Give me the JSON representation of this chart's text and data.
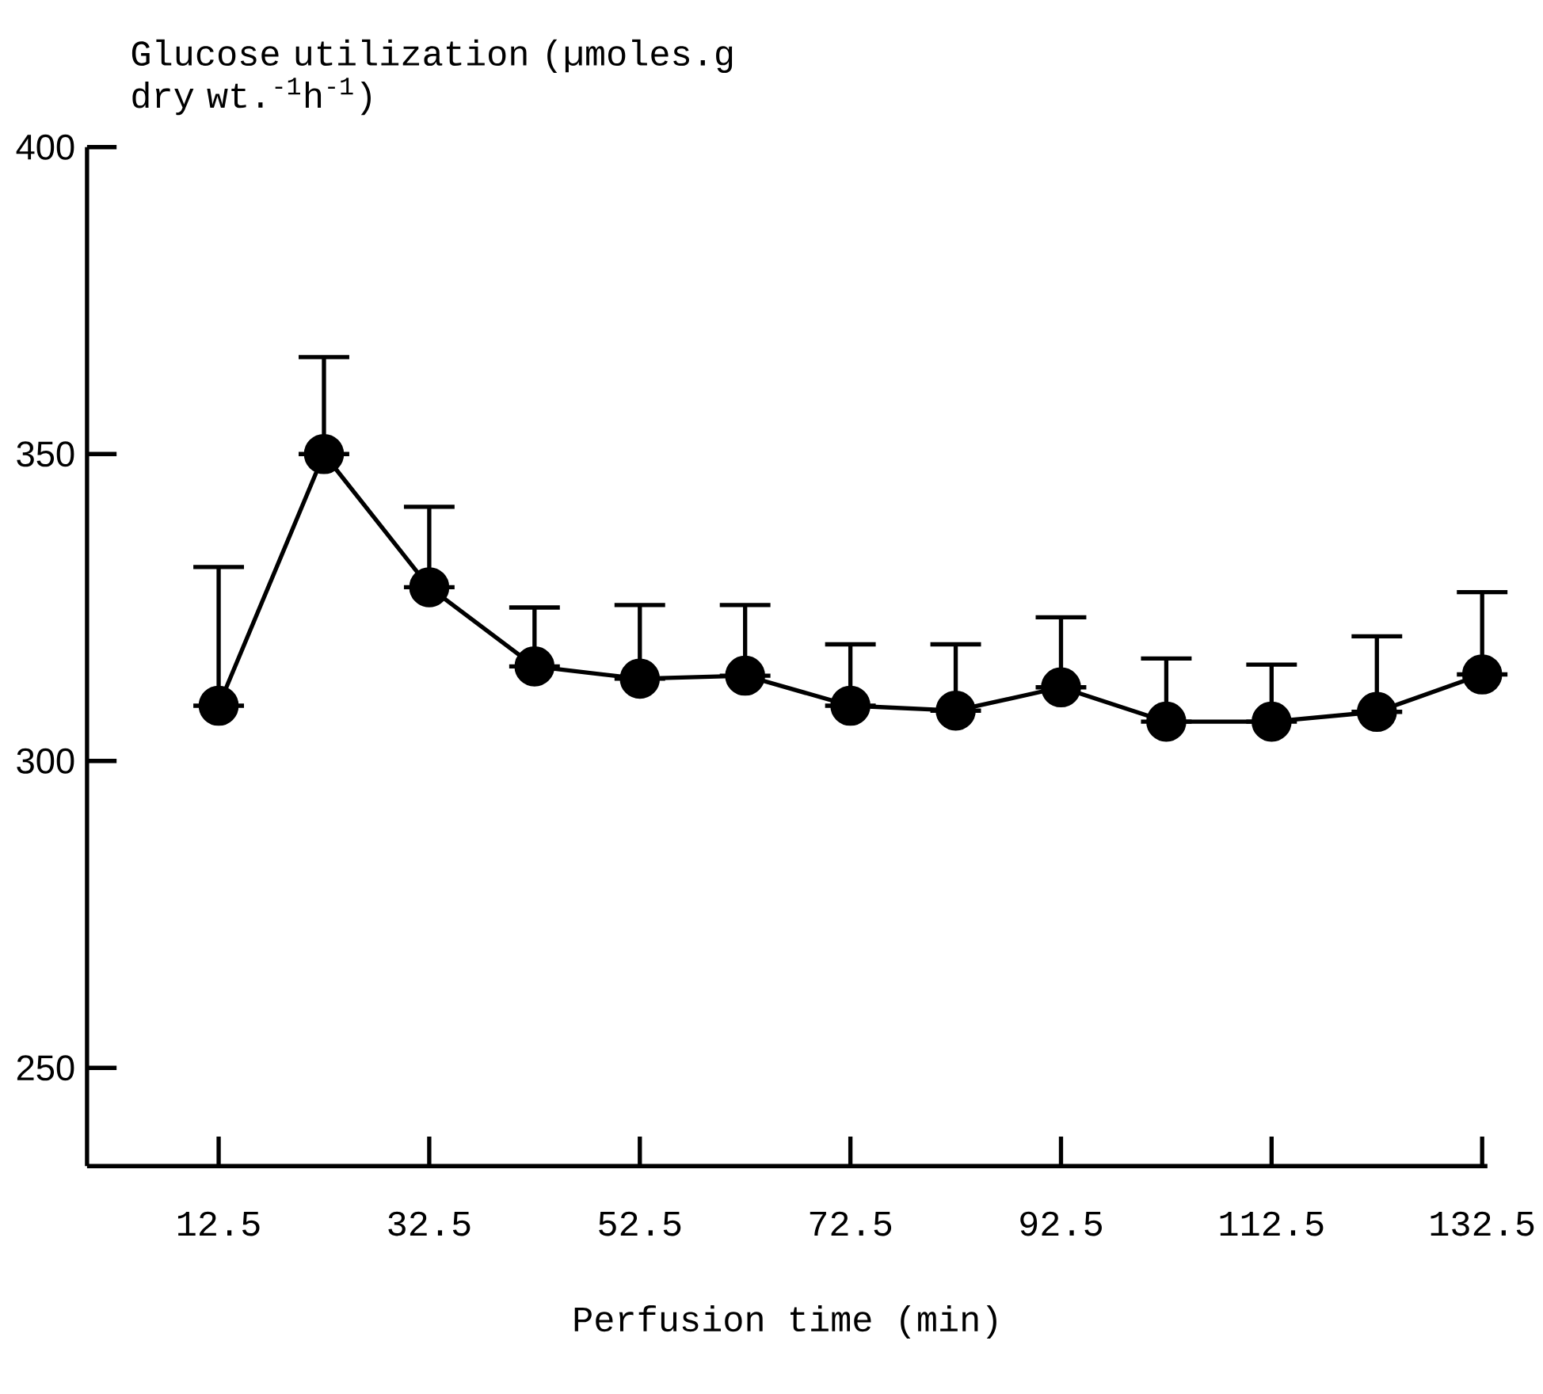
{
  "chart_data": {
    "type": "line",
    "ylabel": "Glucose utilization (µmoles.g dry wt.$^{-1}$h$^{-1}$)",
    "xlabel": "Perfusion time (min)",
    "x": [
      12.5,
      22.5,
      32.5,
      42.5,
      52.5,
      62.5,
      72.5,
      82.5,
      92.5,
      102.5,
      112.5,
      122.5,
      132.5
    ],
    "values": [
      309,
      350,
      328.3,
      315.4,
      313.4,
      313.9,
      309,
      308.2,
      312,
      306.4,
      306.4,
      308,
      314.1
    ],
    "errors": [
      [
        309,
        331.6
      ],
      [
        350,
        365.8
      ],
      [
        328.3,
        341.4
      ],
      [
        315.4,
        325
      ],
      [
        313.4,
        325.4
      ],
      [
        313.9,
        325.4
      ],
      [
        309,
        319
      ],
      [
        308.2,
        319
      ],
      [
        312,
        323.4
      ],
      [
        306.4,
        316.7
      ],
      [
        306.4,
        315.7
      ],
      [
        308,
        320.3
      ],
      [
        314.1,
        327.5
      ]
    ],
    "color": "#000000",
    "marker": "circle",
    "line_style": "solid",
    "xlim": [
      0,
      133
    ],
    "ylim": [
      234,
      400
    ],
    "xticks": [
      12.5,
      32.5,
      52.5,
      72.5,
      92.5,
      112.5,
      132.5
    ],
    "yticks": [
      250,
      300,
      350,
      400
    ]
  }
}
